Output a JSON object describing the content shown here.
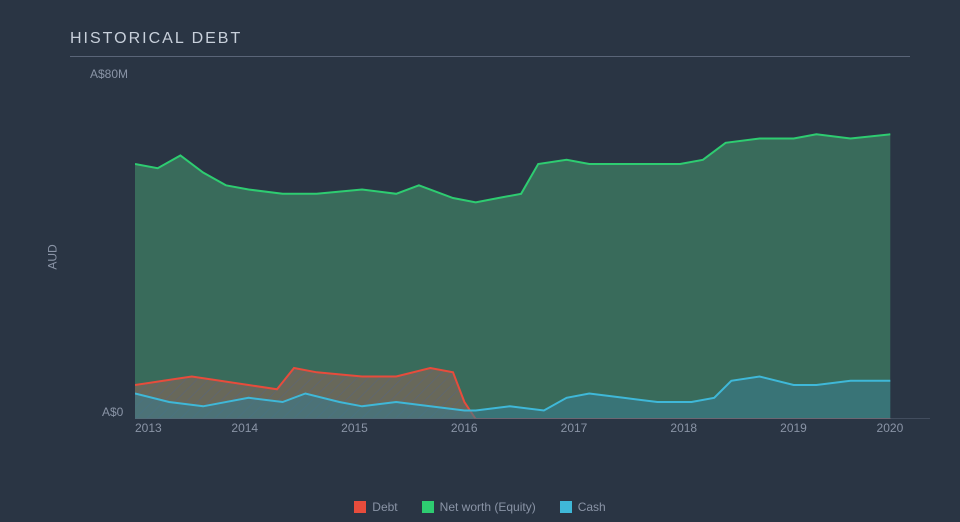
{
  "chart": {
    "type": "area",
    "title": "HISTORICAL DEBT",
    "background_color": "#2a3544",
    "axis_color": "#5a6578",
    "text_color": "#8a94a6",
    "y_axis": {
      "label": "AUD",
      "top_tick": "A$80M",
      "bottom_tick": "A$0",
      "ylim": [
        0,
        80
      ]
    },
    "x_axis": {
      "ticks": [
        "2013",
        "2014",
        "2015",
        "2016",
        "2017",
        "2018",
        "2019",
        "2020"
      ],
      "xlim": [
        2013,
        2020
      ],
      "data_end": 2019.65
    },
    "series": {
      "debt": {
        "label": "Debt",
        "stroke": "#e74c3c",
        "fill": "#c0605a",
        "fill_opacity": 0.55,
        "hatch": true,
        "points": [
          [
            2013.0,
            8
          ],
          [
            2013.25,
            9
          ],
          [
            2013.5,
            10
          ],
          [
            2013.75,
            9
          ],
          [
            2014.0,
            8
          ],
          [
            2014.25,
            7
          ],
          [
            2014.4,
            12
          ],
          [
            2014.6,
            11
          ],
          [
            2015.0,
            10
          ],
          [
            2015.3,
            10
          ],
          [
            2015.6,
            12
          ],
          [
            2015.8,
            11
          ],
          [
            2015.9,
            4
          ],
          [
            2016.0,
            0
          ],
          [
            2016.5,
            0
          ],
          [
            2017.0,
            0
          ],
          [
            2018.0,
            0
          ],
          [
            2019.0,
            0
          ],
          [
            2019.65,
            0
          ]
        ]
      },
      "equity": {
        "label": "Net worth (Equity)",
        "stroke": "#2ecc71",
        "fill": "#3a6f5d",
        "fill_opacity": 0.95,
        "points": [
          [
            2013.0,
            60
          ],
          [
            2013.2,
            59
          ],
          [
            2013.4,
            62
          ],
          [
            2013.6,
            58
          ],
          [
            2013.8,
            55
          ],
          [
            2014.0,
            54
          ],
          [
            2014.3,
            53
          ],
          [
            2014.6,
            53
          ],
          [
            2015.0,
            54
          ],
          [
            2015.3,
            53
          ],
          [
            2015.5,
            55
          ],
          [
            2015.8,
            52
          ],
          [
            2016.0,
            51
          ],
          [
            2016.2,
            52
          ],
          [
            2016.4,
            53
          ],
          [
            2016.55,
            60
          ],
          [
            2016.8,
            61
          ],
          [
            2017.0,
            60
          ],
          [
            2017.4,
            60
          ],
          [
            2017.8,
            60
          ],
          [
            2018.0,
            61
          ],
          [
            2018.2,
            65
          ],
          [
            2018.5,
            66
          ],
          [
            2018.8,
            66
          ],
          [
            2019.0,
            67
          ],
          [
            2019.3,
            66
          ],
          [
            2019.65,
            67
          ]
        ]
      },
      "cash": {
        "label": "Cash",
        "stroke": "#3fb8d8",
        "fill": "#3a7a8a",
        "fill_opacity": 0.6,
        "points": [
          [
            2013.0,
            6
          ],
          [
            2013.3,
            4
          ],
          [
            2013.6,
            3
          ],
          [
            2014.0,
            5
          ],
          [
            2014.3,
            4
          ],
          [
            2014.5,
            6
          ],
          [
            2014.8,
            4
          ],
          [
            2015.0,
            3
          ],
          [
            2015.3,
            4
          ],
          [
            2015.6,
            3
          ],
          [
            2015.9,
            2
          ],
          [
            2016.0,
            2
          ],
          [
            2016.3,
            3
          ],
          [
            2016.6,
            2
          ],
          [
            2016.8,
            5
          ],
          [
            2017.0,
            6
          ],
          [
            2017.3,
            5
          ],
          [
            2017.6,
            4
          ],
          [
            2017.9,
            4
          ],
          [
            2018.1,
            5
          ],
          [
            2018.25,
            9
          ],
          [
            2018.5,
            10
          ],
          [
            2018.8,
            8
          ],
          [
            2019.0,
            8
          ],
          [
            2019.3,
            9
          ],
          [
            2019.65,
            9
          ]
        ]
      }
    },
    "legend_order": [
      "debt",
      "equity",
      "cash"
    ]
  }
}
